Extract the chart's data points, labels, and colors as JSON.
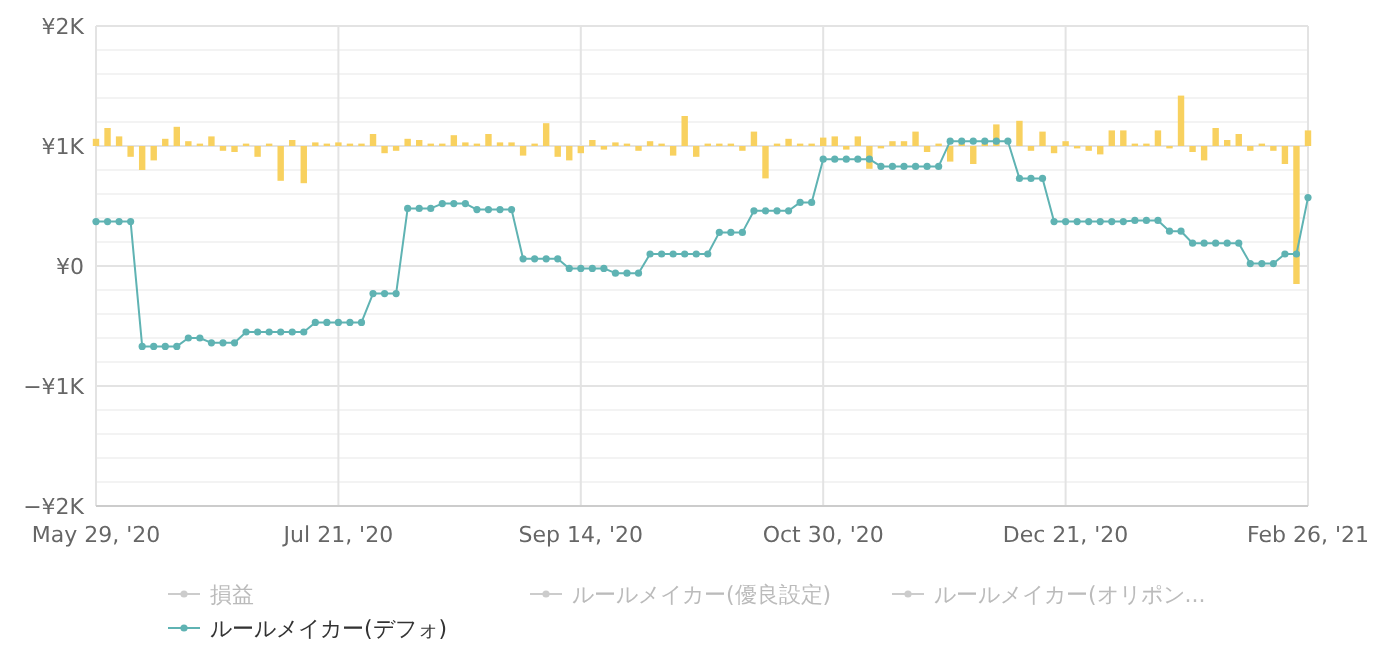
{
  "chart_data": {
    "type": "line",
    "categories": [
      "May 29, '20",
      null,
      null,
      null,
      null,
      null,
      null,
      null,
      null,
      null,
      null,
      null,
      null,
      null,
      null,
      null,
      null,
      null,
      null,
      null,
      null,
      "Jul 21, '20",
      null,
      null,
      null,
      null,
      null,
      null,
      null,
      null,
      null,
      null,
      null,
      null,
      null,
      null,
      null,
      null,
      null,
      null,
      null,
      null,
      "Sep 14, '20",
      null,
      null,
      null,
      null,
      null,
      null,
      null,
      null,
      null,
      null,
      null,
      null,
      null,
      null,
      null,
      null,
      null,
      null,
      null,
      null,
      "Oct 30, '20",
      null,
      null,
      null,
      null,
      null,
      null,
      null,
      null,
      null,
      null,
      null,
      null,
      null,
      null,
      null,
      null,
      null,
      null,
      null,
      null,
      "Dec 21, '20",
      null,
      null,
      null,
      null,
      null,
      null,
      null,
      null,
      null,
      null,
      null,
      null,
      null,
      null,
      null,
      null,
      null,
      null,
      null,
      null,
      "Feb 26, '21"
    ],
    "series": [
      {
        "type": "bar",
        "color": "#f8d15f",
        "base": [
          1000,
          1000,
          1000,
          1000,
          1000,
          1000,
          1000,
          1000,
          1000,
          1000,
          1000,
          1000,
          1000,
          1000,
          1000,
          1000,
          1000,
          1000,
          1000,
          1000,
          1000,
          1000,
          1000,
          1000,
          1000,
          1000,
          1000,
          1000,
          1000,
          1000,
          1000,
          1000,
          1000,
          1000,
          1000,
          1000,
          1000,
          1000,
          1000,
          1000,
          1000,
          1000,
          1000,
          1000,
          1000,
          1000,
          1000,
          1000,
          1000,
          1000,
          1000,
          1000,
          1000,
          1000,
          1000,
          1000,
          1000,
          1000,
          1000,
          1000,
          1000,
          1000,
          1000,
          1000,
          1000,
          1000,
          1000,
          1000,
          1000,
          1000,
          1000,
          1000,
          1000,
          1000,
          1000,
          1000,
          1000,
          1000,
          1000,
          null,
          1000,
          1000,
          1000,
          1000,
          1000,
          1000,
          1000,
          1000,
          1000,
          1000,
          1000,
          1000,
          1000,
          1000,
          1000,
          1000,
          1000,
          1000,
          1000,
          1000,
          1000,
          1000,
          1000,
          1000,
          1000,
          1000
        ],
        "values": [
          60,
          150,
          80,
          -90,
          -200,
          -120,
          60,
          160,
          40,
          20,
          80,
          -40,
          -50,
          20,
          -90,
          20,
          -290,
          50,
          -310,
          30,
          20,
          30,
          20,
          20,
          100,
          -60,
          -40,
          60,
          50,
          20,
          20,
          90,
          30,
          20,
          100,
          30,
          30,
          -80,
          20,
          190,
          -90,
          -120,
          -60,
          50,
          -30,
          30,
          20,
          -40,
          40,
          20,
          -80,
          250,
          -90,
          20,
          20,
          20,
          -40,
          120,
          -270,
          20,
          60,
          20,
          20,
          70,
          80,
          -30,
          80,
          -190,
          -20,
          40,
          40,
          120,
          -50,
          20,
          -130,
          20,
          -150,
          20,
          180,
          null,
          210,
          -40,
          120,
          -60,
          40,
          -20,
          -40,
          -70,
          130,
          130,
          20,
          20,
          130,
          -20,
          420,
          -50,
          -120,
          150,
          50,
          100,
          -40,
          20,
          -40,
          -150,
          -1150,
          130
        ]
      },
      {
        "name": "損益",
        "color": "#cccccc",
        "values": [
          null,
          null,
          null,
          null,
          null,
          null,
          null,
          null,
          null,
          null,
          null,
          null,
          null,
          null,
          null,
          null,
          null,
          null,
          null,
          null,
          null,
          null,
          null,
          null,
          null,
          null,
          null,
          null,
          null,
          null,
          null,
          null,
          null,
          null,
          null,
          null,
          null,
          null,
          null,
          null,
          null,
          null,
          null,
          null,
          null,
          null,
          null,
          null,
          null,
          null,
          null,
          null,
          null,
          null,
          null,
          null,
          null,
          null,
          null,
          null,
          null,
          null,
          null,
          null,
          null,
          null,
          null,
          null,
          null,
          null,
          null,
          null,
          null,
          null,
          null,
          null,
          null,
          null,
          null,
          null,
          null,
          null,
          null,
          null,
          null,
          null,
          null,
          null,
          null,
          null,
          null,
          null,
          null,
          null,
          null,
          null,
          null,
          null,
          null,
          null,
          null,
          null,
          null,
          null,
          null,
          null
        ]
      },
      {
        "name": "ルールメイカー(優良設定)",
        "color": "#cccccc",
        "values": [
          null,
          null,
          null,
          null,
          null,
          null,
          null,
          null,
          null,
          null,
          null,
          null,
          null,
          null,
          null,
          null,
          null,
          null,
          null,
          null,
          null,
          null,
          null,
          null,
          null,
          null,
          null,
          null,
          null,
          null,
          null,
          null,
          null,
          null,
          null,
          null,
          null,
          null,
          null,
          null,
          null,
          null,
          null,
          null,
          null,
          null,
          null,
          null,
          null,
          null,
          null,
          null,
          null,
          null,
          null,
          null,
          null,
          null,
          null,
          null,
          null,
          null,
          null,
          null,
          null,
          null,
          null,
          null,
          null,
          null,
          null,
          null,
          null,
          null,
          null,
          null,
          null,
          null,
          null,
          null,
          null,
          null,
          null,
          null,
          null,
          null,
          null,
          null,
          null,
          null,
          null,
          null,
          null,
          null,
          null,
          null,
          null,
          null,
          null,
          null,
          null,
          null,
          null,
          null,
          null,
          null
        ]
      },
      {
        "name": "ルールメイカー(オリポン...",
        "color": "#cccccc",
        "values": [
          null,
          null,
          null,
          null,
          null,
          null,
          null,
          null,
          null,
          null,
          null,
          null,
          null,
          null,
          null,
          null,
          null,
          null,
          null,
          null,
          null,
          null,
          null,
          null,
          null,
          null,
          null,
          null,
          null,
          null,
          null,
          null,
          null,
          null,
          null,
          null,
          null,
          null,
          null,
          null,
          null,
          null,
          null,
          null,
          null,
          null,
          null,
          null,
          null,
          null,
          null,
          null,
          null,
          null,
          null,
          null,
          null,
          null,
          null,
          null,
          null,
          null,
          null,
          null,
          null,
          null,
          null,
          null,
          null,
          null,
          null,
          null,
          null,
          null,
          null,
          null,
          null,
          null,
          null,
          null,
          null,
          null,
          null,
          null,
          null,
          null,
          null,
          null,
          null,
          null,
          null,
          null,
          null,
          null,
          null,
          null,
          null,
          null,
          null,
          null,
          null,
          null,
          null,
          null,
          null,
          null
        ]
      },
      {
        "name": "ルールメイカー(デフォ)",
        "color": "#5fb3b3",
        "values": [
          370,
          370,
          370,
          370,
          -670,
          -670,
          -670,
          -670,
          -600,
          -600,
          -640,
          -640,
          -640,
          -550,
          -550,
          -550,
          -550,
          -550,
          -550,
          -470,
          -470,
          -470,
          -470,
          -470,
          -230,
          -230,
          -230,
          480,
          480,
          480,
          520,
          520,
          520,
          470,
          470,
          470,
          470,
          60,
          60,
          60,
          60,
          -20,
          -20,
          -20,
          -20,
          -60,
          -60,
          -60,
          100,
          100,
          100,
          100,
          100,
          100,
          280,
          280,
          280,
          460,
          460,
          460,
          460,
          530,
          530,
          890,
          890,
          890,
          890,
          890,
          830,
          830,
          830,
          830,
          830,
          830,
          1040,
          1040,
          1040,
          1040,
          1040,
          1040,
          730,
          730,
          730,
          370,
          370,
          370,
          370,
          370,
          370,
          370,
          380,
          380,
          380,
          290,
          290,
          190,
          190,
          190,
          190,
          190,
          20,
          20,
          20,
          100,
          100,
          570
        ]
      }
    ],
    "ylim": [
      -2000,
      2000
    ],
    "yticks": [
      {
        "value": -2000,
        "label": "−¥2K"
      },
      {
        "value": -1800,
        "label": null
      },
      {
        "value": -1600,
        "label": null
      },
      {
        "value": -1400,
        "label": null
      },
      {
        "value": -1200,
        "label": null
      },
      {
        "value": -1000,
        "label": "−¥1K"
      },
      {
        "value": -800,
        "label": null
      },
      {
        "value": -600,
        "label": null
      },
      {
        "value": -400,
        "label": null
      },
      {
        "value": -200,
        "label": null
      },
      {
        "value": 0,
        "label": "¥0"
      },
      {
        "value": 200,
        "label": null
      },
      {
        "value": 400,
        "label": null
      },
      {
        "value": 600,
        "label": null
      },
      {
        "value": 800,
        "label": null
      },
      {
        "value": 1000,
        "label": "¥1K"
      },
      {
        "value": 1200,
        "label": null
      },
      {
        "value": 1400,
        "label": null
      },
      {
        "value": 1600,
        "label": null
      },
      {
        "value": 1800,
        "label": null
      },
      {
        "value": 2000,
        "label": "¥2K"
      }
    ],
    "grid": true,
    "legend": "bottom",
    "marker": "circle",
    "line_style": "solid"
  }
}
